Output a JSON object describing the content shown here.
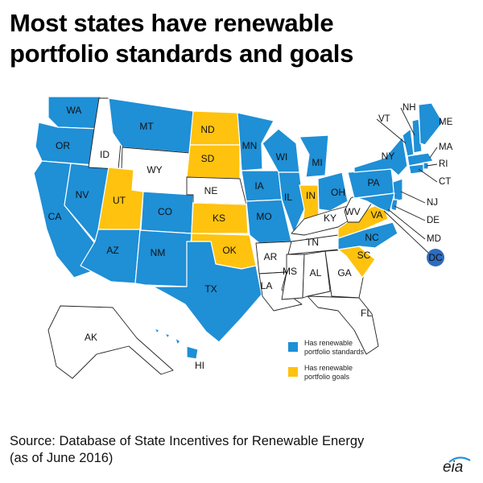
{
  "title": {
    "line1": "Most states have renewable",
    "line2": "portfolio standards and goals"
  },
  "colors": {
    "standards": "#1f8fd6",
    "goals": "#ffc20e",
    "none": "#ffffff",
    "dc_marker": "#2e6cc0"
  },
  "legend": {
    "standards_line1": "Has renewable",
    "standards_line2": "portfolio standards",
    "goals_line1": "Has renewable",
    "goals_line2": "portfolio goals"
  },
  "states": [
    {
      "abbr": "WA",
      "status": "standards"
    },
    {
      "abbr": "OR",
      "status": "standards"
    },
    {
      "abbr": "CA",
      "status": "standards"
    },
    {
      "abbr": "NV",
      "status": "standards"
    },
    {
      "abbr": "ID",
      "status": "none"
    },
    {
      "abbr": "MT",
      "status": "standards"
    },
    {
      "abbr": "WY",
      "status": "none"
    },
    {
      "abbr": "UT",
      "status": "goals"
    },
    {
      "abbr": "CO",
      "status": "standards"
    },
    {
      "abbr": "AZ",
      "status": "standards"
    },
    {
      "abbr": "NM",
      "status": "standards"
    },
    {
      "abbr": "ND",
      "status": "goals"
    },
    {
      "abbr": "SD",
      "status": "goals"
    },
    {
      "abbr": "NE",
      "status": "none"
    },
    {
      "abbr": "KS",
      "status": "goals"
    },
    {
      "abbr": "OK",
      "status": "goals"
    },
    {
      "abbr": "TX",
      "status": "standards"
    },
    {
      "abbr": "MN",
      "status": "standards"
    },
    {
      "abbr": "IA",
      "status": "standards"
    },
    {
      "abbr": "MO",
      "status": "standards"
    },
    {
      "abbr": "AR",
      "status": "none"
    },
    {
      "abbr": "LA",
      "status": "none"
    },
    {
      "abbr": "WI",
      "status": "standards"
    },
    {
      "abbr": "IL",
      "status": "standards"
    },
    {
      "abbr": "MI",
      "status": "standards"
    },
    {
      "abbr": "IN",
      "status": "goals"
    },
    {
      "abbr": "OH",
      "status": "standards"
    },
    {
      "abbr": "KY",
      "status": "none"
    },
    {
      "abbr": "TN",
      "status": "none"
    },
    {
      "abbr": "MS",
      "status": "none"
    },
    {
      "abbr": "AL",
      "status": "none"
    },
    {
      "abbr": "GA",
      "status": "none"
    },
    {
      "abbr": "FL",
      "status": "none"
    },
    {
      "abbr": "SC",
      "status": "goals"
    },
    {
      "abbr": "NC",
      "status": "standards"
    },
    {
      "abbr": "VA",
      "status": "goals"
    },
    {
      "abbr": "WV",
      "status": "none"
    },
    {
      "abbr": "PA",
      "status": "standards"
    },
    {
      "abbr": "NY",
      "status": "standards"
    },
    {
      "abbr": "VT",
      "status": "standards"
    },
    {
      "abbr": "NH",
      "status": "standards"
    },
    {
      "abbr": "ME",
      "status": "standards"
    },
    {
      "abbr": "MA",
      "status": "standards"
    },
    {
      "abbr": "RI",
      "status": "standards"
    },
    {
      "abbr": "CT",
      "status": "standards"
    },
    {
      "abbr": "NJ",
      "status": "standards"
    },
    {
      "abbr": "DE",
      "status": "standards"
    },
    {
      "abbr": "MD",
      "status": "standards"
    },
    {
      "abbr": "DC",
      "status": "standards"
    },
    {
      "abbr": "AK",
      "status": "none"
    },
    {
      "abbr": "HI",
      "status": "standards"
    }
  ],
  "source": {
    "line1": "Source: Database of State Incentives for Renewable Energy",
    "line2": "(as of June 2016)"
  },
  "logo": "eia"
}
